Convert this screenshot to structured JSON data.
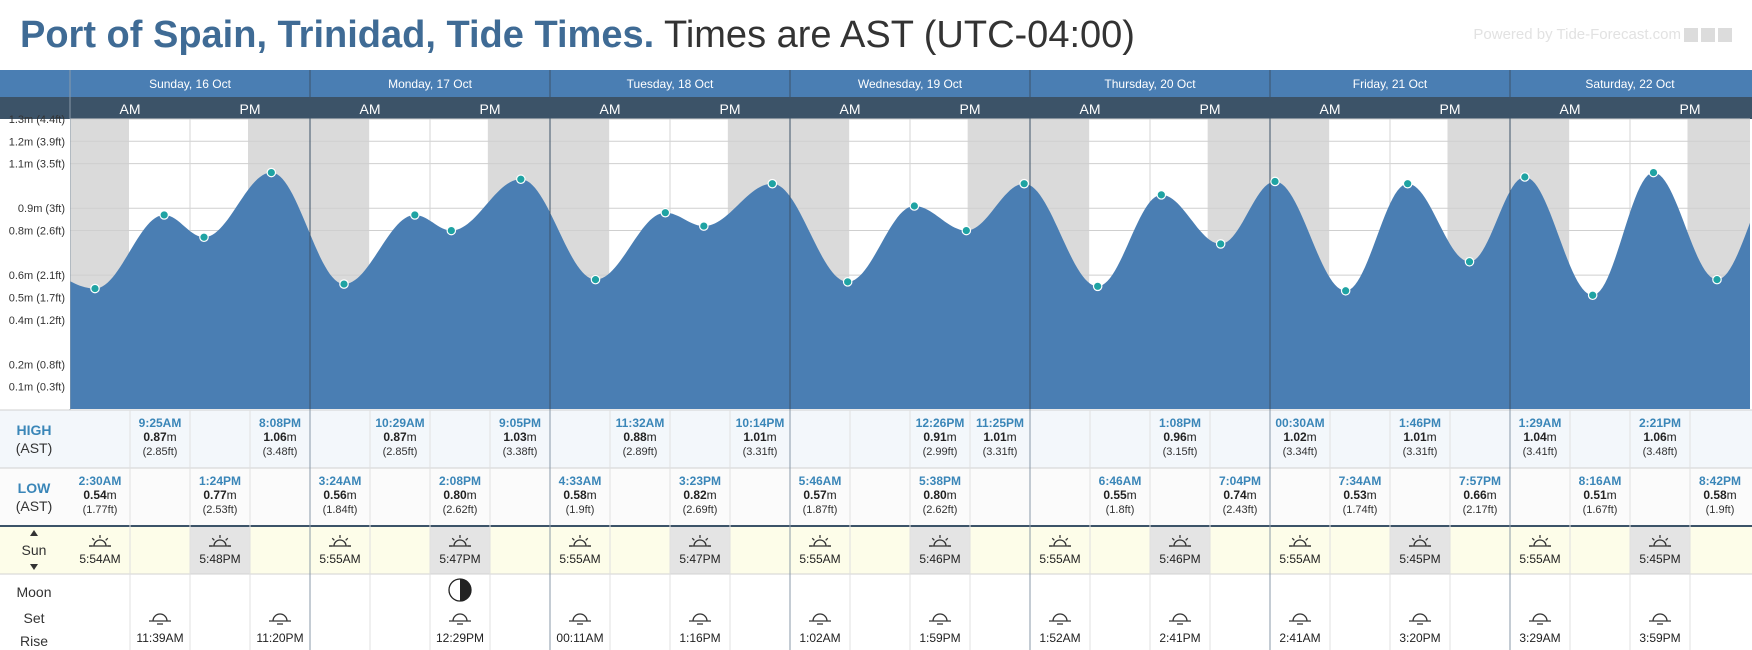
{
  "header": {
    "title_location": "Port of Spain, Trinidad, Tide Times.",
    "title_times": "Times are AST (UTC-04:00)",
    "powered_by": "Powered by Tide-Forecast.com"
  },
  "colors": {
    "header_blue": "#4a7eb3",
    "ampm_bar": "#3c5368",
    "tide_fill": "#4a7eb3",
    "night_shade": "#dadada",
    "marker": "#1fa3a3",
    "label_blue": "#3a86b8",
    "sun_row": "#fdfde9"
  },
  "ampm_labels": [
    "AM",
    "PM"
  ],
  "row_labels": {
    "high": "HIGH",
    "low": "LOW",
    "tz": "(AST)",
    "sun": "Sun",
    "moon": "Moon",
    "set": "Set",
    "rise": "Rise"
  },
  "chart_data": {
    "type": "area",
    "title": "Port of Spain, Trinidad, Tide Times.",
    "x_unit": "hours since Sunday 16 Oct 00:00 AST",
    "ylabel": "",
    "ylim": [
      0,
      1.3
    ],
    "y_ticks": [
      {
        "v": 0.1,
        "label": "0.1m (0.3ft)"
      },
      {
        "v": 0.2,
        "label": "0.2m (0.8ft)"
      },
      {
        "v": 0.4,
        "label": "0.4m (1.2ft)"
      },
      {
        "v": 0.5,
        "label": "0.5m (1.7ft)"
      },
      {
        "v": 0.6,
        "label": "0.6m (2.1ft)"
      },
      {
        "v": 0.8,
        "label": "0.8m (2.6ft)"
      },
      {
        "v": 0.9,
        "label": "0.9m (3ft)"
      },
      {
        "v": 1.1,
        "label": "1.1m (3.5ft)"
      },
      {
        "v": 1.2,
        "label": "1.2m (3.9ft)"
      },
      {
        "v": 1.3,
        "label": "1.3m (4.4ft)"
      }
    ],
    "grid": true,
    "days": [
      {
        "label": "Sunday, 16 Oct",
        "highs": [
          {
            "time": "9:25AM",
            "m": "0.87m",
            "ft": "(2.85ft)"
          },
          {
            "time": "8:08PM",
            "m": "1.06m",
            "ft": "(3.48ft)"
          }
        ],
        "lows": [
          {
            "time": "2:30AM",
            "m": "0.54m",
            "ft": "(1.77ft)"
          },
          {
            "time": "1:24PM",
            "m": "0.77m",
            "ft": "(2.53ft)"
          }
        ],
        "sunrise": "5:54AM",
        "sunset": "5:48PM",
        "moon": [
          {
            "time": "11:39AM",
            "type": "set"
          },
          {
            "time": "11:20PM",
            "type": "rise"
          }
        ],
        "moon_phase": false
      },
      {
        "label": "Monday, 17 Oct",
        "highs": [
          {
            "time": "10:29AM",
            "m": "0.87m",
            "ft": "(2.85ft)"
          },
          {
            "time": "9:05PM",
            "m": "1.03m",
            "ft": "(3.38ft)"
          }
        ],
        "lows": [
          {
            "time": "3:24AM",
            "m": "0.56m",
            "ft": "(1.84ft)"
          },
          {
            "time": "2:08PM",
            "m": "0.80m",
            "ft": "(2.62ft)"
          }
        ],
        "sunrise": "5:55AM",
        "sunset": "5:47PM",
        "moon": [
          {
            "time": "12:29PM",
            "type": "set"
          }
        ],
        "moon_phase": true
      },
      {
        "label": "Tuesday, 18 Oct",
        "highs": [
          {
            "time": "11:32AM",
            "m": "0.88m",
            "ft": "(2.89ft)"
          },
          {
            "time": "10:14PM",
            "m": "1.01m",
            "ft": "(3.31ft)"
          }
        ],
        "lows": [
          {
            "time": "4:33AM",
            "m": "0.58m",
            "ft": "(1.9ft)"
          },
          {
            "time": "3:23PM",
            "m": "0.82m",
            "ft": "(2.69ft)"
          }
        ],
        "sunrise": "5:55AM",
        "sunset": "5:47PM",
        "moon": [
          {
            "time": "00:11AM",
            "type": "rise"
          },
          {
            "time": "1:16PM",
            "type": "set"
          }
        ],
        "moon_phase": false
      },
      {
        "label": "Wednesday, 19 Oct",
        "highs": [
          {
            "time": "12:26PM",
            "m": "0.91m",
            "ft": "(2.99ft)"
          },
          {
            "time": "11:25PM",
            "m": "1.01m",
            "ft": "(3.31ft)"
          }
        ],
        "lows": [
          {
            "time": "5:46AM",
            "m": "0.57m",
            "ft": "(1.87ft)"
          },
          {
            "time": "5:38PM",
            "m": "0.80m",
            "ft": "(2.62ft)"
          }
        ],
        "sunrise": "5:55AM",
        "sunset": "5:46PM",
        "moon": [
          {
            "time": "1:02AM",
            "type": "rise"
          },
          {
            "time": "1:59PM",
            "type": "set"
          }
        ],
        "moon_phase": false
      },
      {
        "label": "Thursday, 20 Oct",
        "highs": [
          {
            "time": "1:08PM",
            "m": "0.96m",
            "ft": "(3.15ft)"
          }
        ],
        "lows": [
          {
            "time": "6:46AM",
            "m": "0.55m",
            "ft": "(1.8ft)"
          },
          {
            "time": "7:04PM",
            "m": "0.74m",
            "ft": "(2.43ft)"
          }
        ],
        "sunrise": "5:55AM",
        "sunset": "5:46PM",
        "moon": [
          {
            "time": "1:52AM",
            "type": "rise"
          },
          {
            "time": "2:41PM",
            "type": "set"
          }
        ],
        "moon_phase": false
      },
      {
        "label": "Friday, 21 Oct",
        "highs": [
          {
            "time": "00:30AM",
            "m": "1.02m",
            "ft": "(3.34ft)"
          },
          {
            "time": "1:46PM",
            "m": "1.01m",
            "ft": "(3.31ft)"
          }
        ],
        "lows": [
          {
            "time": "7:34AM",
            "m": "0.53m",
            "ft": "(1.74ft)"
          },
          {
            "time": "7:57PM",
            "m": "0.66m",
            "ft": "(2.17ft)"
          }
        ],
        "sunrise": "5:55AM",
        "sunset": "5:45PM",
        "moon": [
          {
            "time": "2:41AM",
            "type": "rise"
          },
          {
            "time": "3:20PM",
            "type": "set"
          }
        ],
        "moon_phase": false
      },
      {
        "label": "Saturday, 22 Oct",
        "highs": [
          {
            "time": "1:29AM",
            "m": "1.04m",
            "ft": "(3.41ft)"
          },
          {
            "time": "2:21PM",
            "m": "1.06m",
            "ft": "(3.48ft)"
          }
        ],
        "lows": [
          {
            "time": "8:16AM",
            "m": "0.51m",
            "ft": "(1.67ft)"
          },
          {
            "time": "8:42PM",
            "m": "0.58m",
            "ft": "(1.9ft)"
          }
        ],
        "sunrise": "5:55AM",
        "sunset": "5:45PM",
        "moon": [
          {
            "time": "3:29AM",
            "type": "rise"
          },
          {
            "time": "3:59PM",
            "type": "set"
          }
        ],
        "moon_phase": false
      }
    ]
  }
}
